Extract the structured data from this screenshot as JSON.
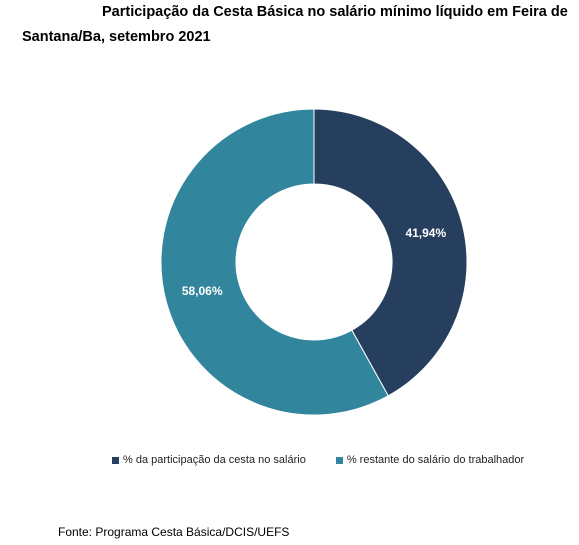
{
  "title": "Participação da Cesta Básica no salário mínimo líquido em Feira de Santana/Ba, setembro 2021",
  "source": "Fonte: Programa Cesta Básica/DCIS/UEFS",
  "chart_data": {
    "type": "pie",
    "donut": true,
    "title": "Participação da Cesta Básica no salário mínimo líquido em Feira de Santana/Ba, setembro 2021",
    "legend_position": "bottom",
    "slices": [
      {
        "name": "% da participação da cesta no salário",
        "value": 41.94,
        "label": "41,94%",
        "color": "#263f5e"
      },
      {
        "name": "% restante do salário do trabalhador",
        "value": 58.06,
        "label": "58,06%",
        "color": "#31859c"
      }
    ]
  }
}
